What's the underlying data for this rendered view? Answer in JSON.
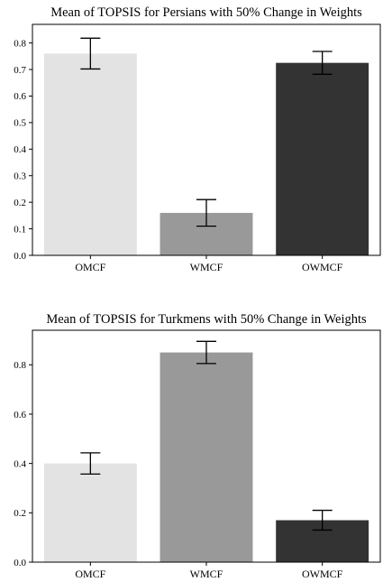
{
  "chart_data": [
    {
      "type": "bar",
      "title": "Mean of TOPSIS for Persians with 50% Change in Weights",
      "categories": [
        "OMCF",
        "WMCF",
        "OWMCF"
      ],
      "values": [
        0.76,
        0.16,
        0.725
      ],
      "errors": [
        0.058,
        0.05,
        0.043
      ],
      "colors": [
        "#e3e3e3",
        "#999999",
        "#333333"
      ],
      "ylim": [
        0,
        0.87
      ],
      "yticks": [
        0.0,
        0.1,
        0.2,
        0.3,
        0.4,
        0.5,
        0.6,
        0.7,
        0.8
      ],
      "ytick_labels": [
        "0.0",
        "0.1",
        "0.2",
        "0.3",
        "0.4",
        "0.5",
        "0.6",
        "0.7",
        "0.8"
      ],
      "xlabel": "",
      "ylabel": "",
      "grid": false
    },
    {
      "type": "bar",
      "title": "Mean of TOPSIS for Turkmens with 50% Change in Weights",
      "categories": [
        "OMCF",
        "WMCF",
        "OWMCF"
      ],
      "values": [
        0.4,
        0.85,
        0.17
      ],
      "errors": [
        0.043,
        0.045,
        0.04
      ],
      "colors": [
        "#e3e3e3",
        "#999999",
        "#333333"
      ],
      "ylim": [
        0,
        0.94
      ],
      "yticks": [
        0.0,
        0.2,
        0.4,
        0.6,
        0.8
      ],
      "ytick_labels": [
        "0.0",
        "0.2",
        "0.4",
        "0.6",
        "0.8"
      ],
      "xlabel": "",
      "ylabel": "",
      "grid": false
    }
  ]
}
